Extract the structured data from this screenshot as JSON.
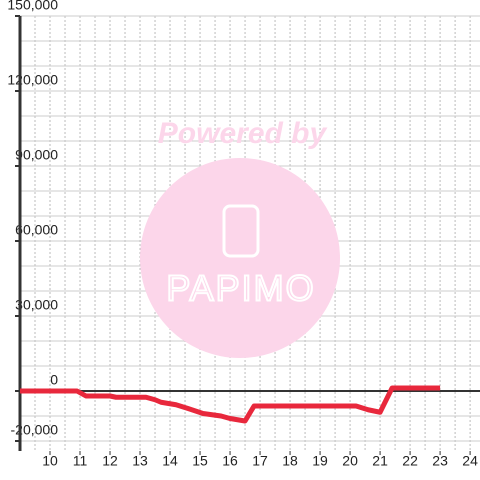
{
  "chart_data": {
    "type": "line",
    "watermark_title": "Powered by",
    "watermark_logo": "PAPIMO",
    "x": [
      9,
      10.9,
      11.2,
      12,
      12.2,
      13.2,
      13.5,
      13.7,
      14.2,
      14.6,
      15.1,
      15.4,
      15.7,
      16,
      16.5,
      16.8,
      20.2,
      20.6,
      21,
      21.4,
      23
    ],
    "series": [
      {
        "color": "#e8283c",
        "values": [
          0,
          0,
          -2000,
          -2000,
          -2500,
          -2500,
          -3500,
          -4500,
          -5500,
          -7000,
          -9000,
          -9500,
          -10000,
          -11000,
          -12000,
          -6000,
          -6000,
          -7500,
          -8500,
          1200,
          1200
        ]
      }
    ],
    "xlim": [
      9,
      24.33
    ],
    "xticks": [
      10,
      11,
      12,
      13,
      14,
      15,
      16,
      17,
      18,
      19,
      20,
      21,
      22,
      23,
      24
    ],
    "ylim": [
      -24000,
      150000
    ],
    "yticks": [
      {
        "value": -20000,
        "label": "-20,000"
      },
      0,
      {
        "value": 30000,
        "label": "30,000"
      },
      {
        "value": 60000,
        "label": "60,000"
      },
      {
        "value": 90000,
        "label": "90,000"
      },
      {
        "value": 120000,
        "label": "120,000"
      },
      {
        "value": 150000,
        "label": "150,000"
      }
    ],
    "minor_grid_step": {
      "x": 0.5,
      "y": 10000
    },
    "grid": true
  }
}
